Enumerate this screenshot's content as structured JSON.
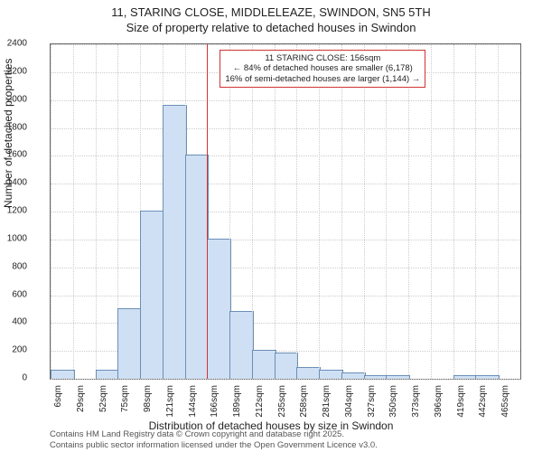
{
  "title_line1": "11, STARING CLOSE, MIDDLELEAZE, SWINDON, SN5 5TH",
  "title_line2": "Size of property relative to detached houses in Swindon",
  "ylabel": "Number of detached properties",
  "xlabel": "Distribution of detached houses by size in Swindon",
  "footnote1": "Contains HM Land Registry data © Crown copyright and database right 2025.",
  "footnote2": "Contains public sector information licensed under the Open Government Licence v3.0.",
  "chart": {
    "type": "histogram",
    "ylim": [
      0,
      2400
    ],
    "yticks": [
      0,
      200,
      400,
      600,
      800,
      1000,
      1200,
      1400,
      1600,
      1800,
      2000,
      2200,
      2400
    ],
    "xtick_labels": [
      "6sqm",
      "29sqm",
      "52sqm",
      "75sqm",
      "98sqm",
      "121sqm",
      "144sqm",
      "166sqm",
      "189sqm",
      "212sqm",
      "235sqm",
      "258sqm",
      "281sqm",
      "304sqm",
      "327sqm",
      "350sqm",
      "373sqm",
      "396sqm",
      "419sqm",
      "442sqm",
      "465sqm"
    ],
    "bar_values": [
      60,
      0,
      60,
      500,
      1200,
      1960,
      1600,
      1000,
      480,
      200,
      180,
      80,
      60,
      40,
      20,
      20,
      0,
      0,
      20,
      20,
      0
    ],
    "bar_fill": "#cfe0f4",
    "bar_stroke": "#6b8fb8",
    "grid_color": "#cccccc",
    "plot_border": "#666666",
    "background": "#ffffff",
    "refline_x_index": 7,
    "refline_color": "#d33333",
    "annotation": {
      "line1": "11 STARING CLOSE: 156sqm",
      "line2": "← 84% of detached houses are smaller (6,178)",
      "line3": "16% of semi-detached houses are larger (1,144) →"
    }
  }
}
